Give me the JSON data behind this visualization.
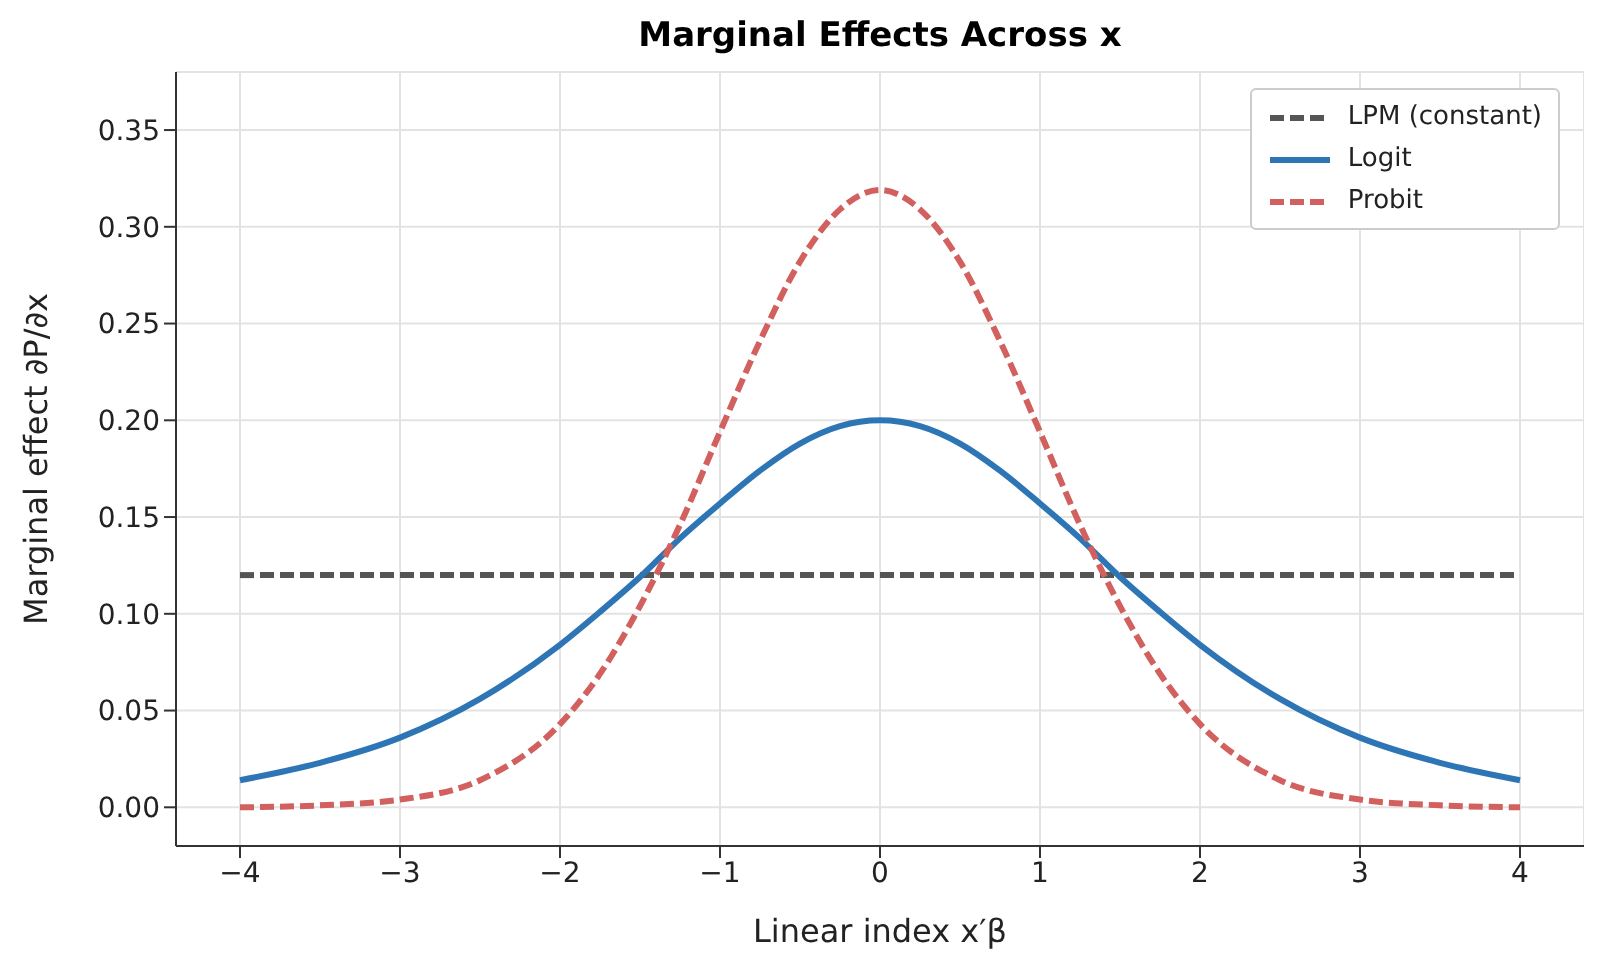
{
  "chart_data": {
    "type": "line",
    "title": "Marginal Effects Across x",
    "xlabel": "Linear index x′β",
    "ylabel": "Marginal effect ∂P/∂x",
    "xlim": [
      -4.4,
      4.4
    ],
    "ylim": [
      -0.02,
      0.38
    ],
    "xticks": [
      {
        "value": -4,
        "label": "−4"
      },
      {
        "value": -3,
        "label": "−3"
      },
      {
        "value": -2,
        "label": "−2"
      },
      {
        "value": -1,
        "label": "−1"
      },
      0,
      1,
      2,
      3,
      4
    ],
    "yticks": [
      {
        "value": 0,
        "label": "0.00"
      },
      {
        "value": 0.05,
        "label": "0.05"
      },
      {
        "value": 0.1,
        "label": "0.10"
      },
      {
        "value": 0.15,
        "label": "0.15"
      },
      {
        "value": 0.2,
        "label": "0.20"
      },
      {
        "value": 0.25,
        "label": "0.25"
      },
      {
        "value": 0.3,
        "label": "0.30"
      },
      {
        "value": 0.35,
        "label": "0.35"
      }
    ],
    "grid": true,
    "legend": "top right",
    "marker": "none",
    "series": [
      {
        "name": "LPM (constant)",
        "color": "#555555",
        "line_style": "dashed",
        "x": [
          -4,
          4
        ],
        "values": [
          0.12,
          0.12
        ]
      },
      {
        "name": "Logit",
        "color": "#2e75b6",
        "line_style": "solid",
        "x": [
          -4,
          -3.5,
          -3,
          -2.5,
          -2,
          -1.75,
          -1.5,
          -1.25,
          -1,
          -0.75,
          -0.5,
          -0.25,
          0,
          0.25,
          0.5,
          0.75,
          1,
          1.25,
          1.5,
          1.75,
          2,
          2.5,
          3,
          3.5,
          4
        ],
        "values": [
          0.014,
          0.023,
          0.036,
          0.056,
          0.084,
          0.101,
          0.119,
          0.139,
          0.157,
          0.174,
          0.188,
          0.197,
          0.2,
          0.197,
          0.188,
          0.174,
          0.157,
          0.139,
          0.119,
          0.101,
          0.084,
          0.056,
          0.036,
          0.023,
          0.014
        ]
      },
      {
        "name": "Probit",
        "color": "#d1605e",
        "line_style": "dashed",
        "x": [
          -4,
          -3.5,
          -3,
          -2.5,
          -2,
          -1.75,
          -1.5,
          -1.25,
          -1,
          -0.75,
          -0.5,
          -0.25,
          0,
          0.25,
          0.5,
          0.75,
          1,
          1.25,
          1.5,
          1.75,
          2,
          2.5,
          3,
          3.5,
          4
        ],
        "values": [
          0.0,
          0.001,
          0.004,
          0.014,
          0.043,
          0.069,
          0.104,
          0.146,
          0.194,
          0.241,
          0.282,
          0.309,
          0.319,
          0.309,
          0.282,
          0.241,
          0.194,
          0.146,
          0.104,
          0.069,
          0.043,
          0.014,
          0.004,
          0.001,
          0.0
        ]
      }
    ]
  }
}
